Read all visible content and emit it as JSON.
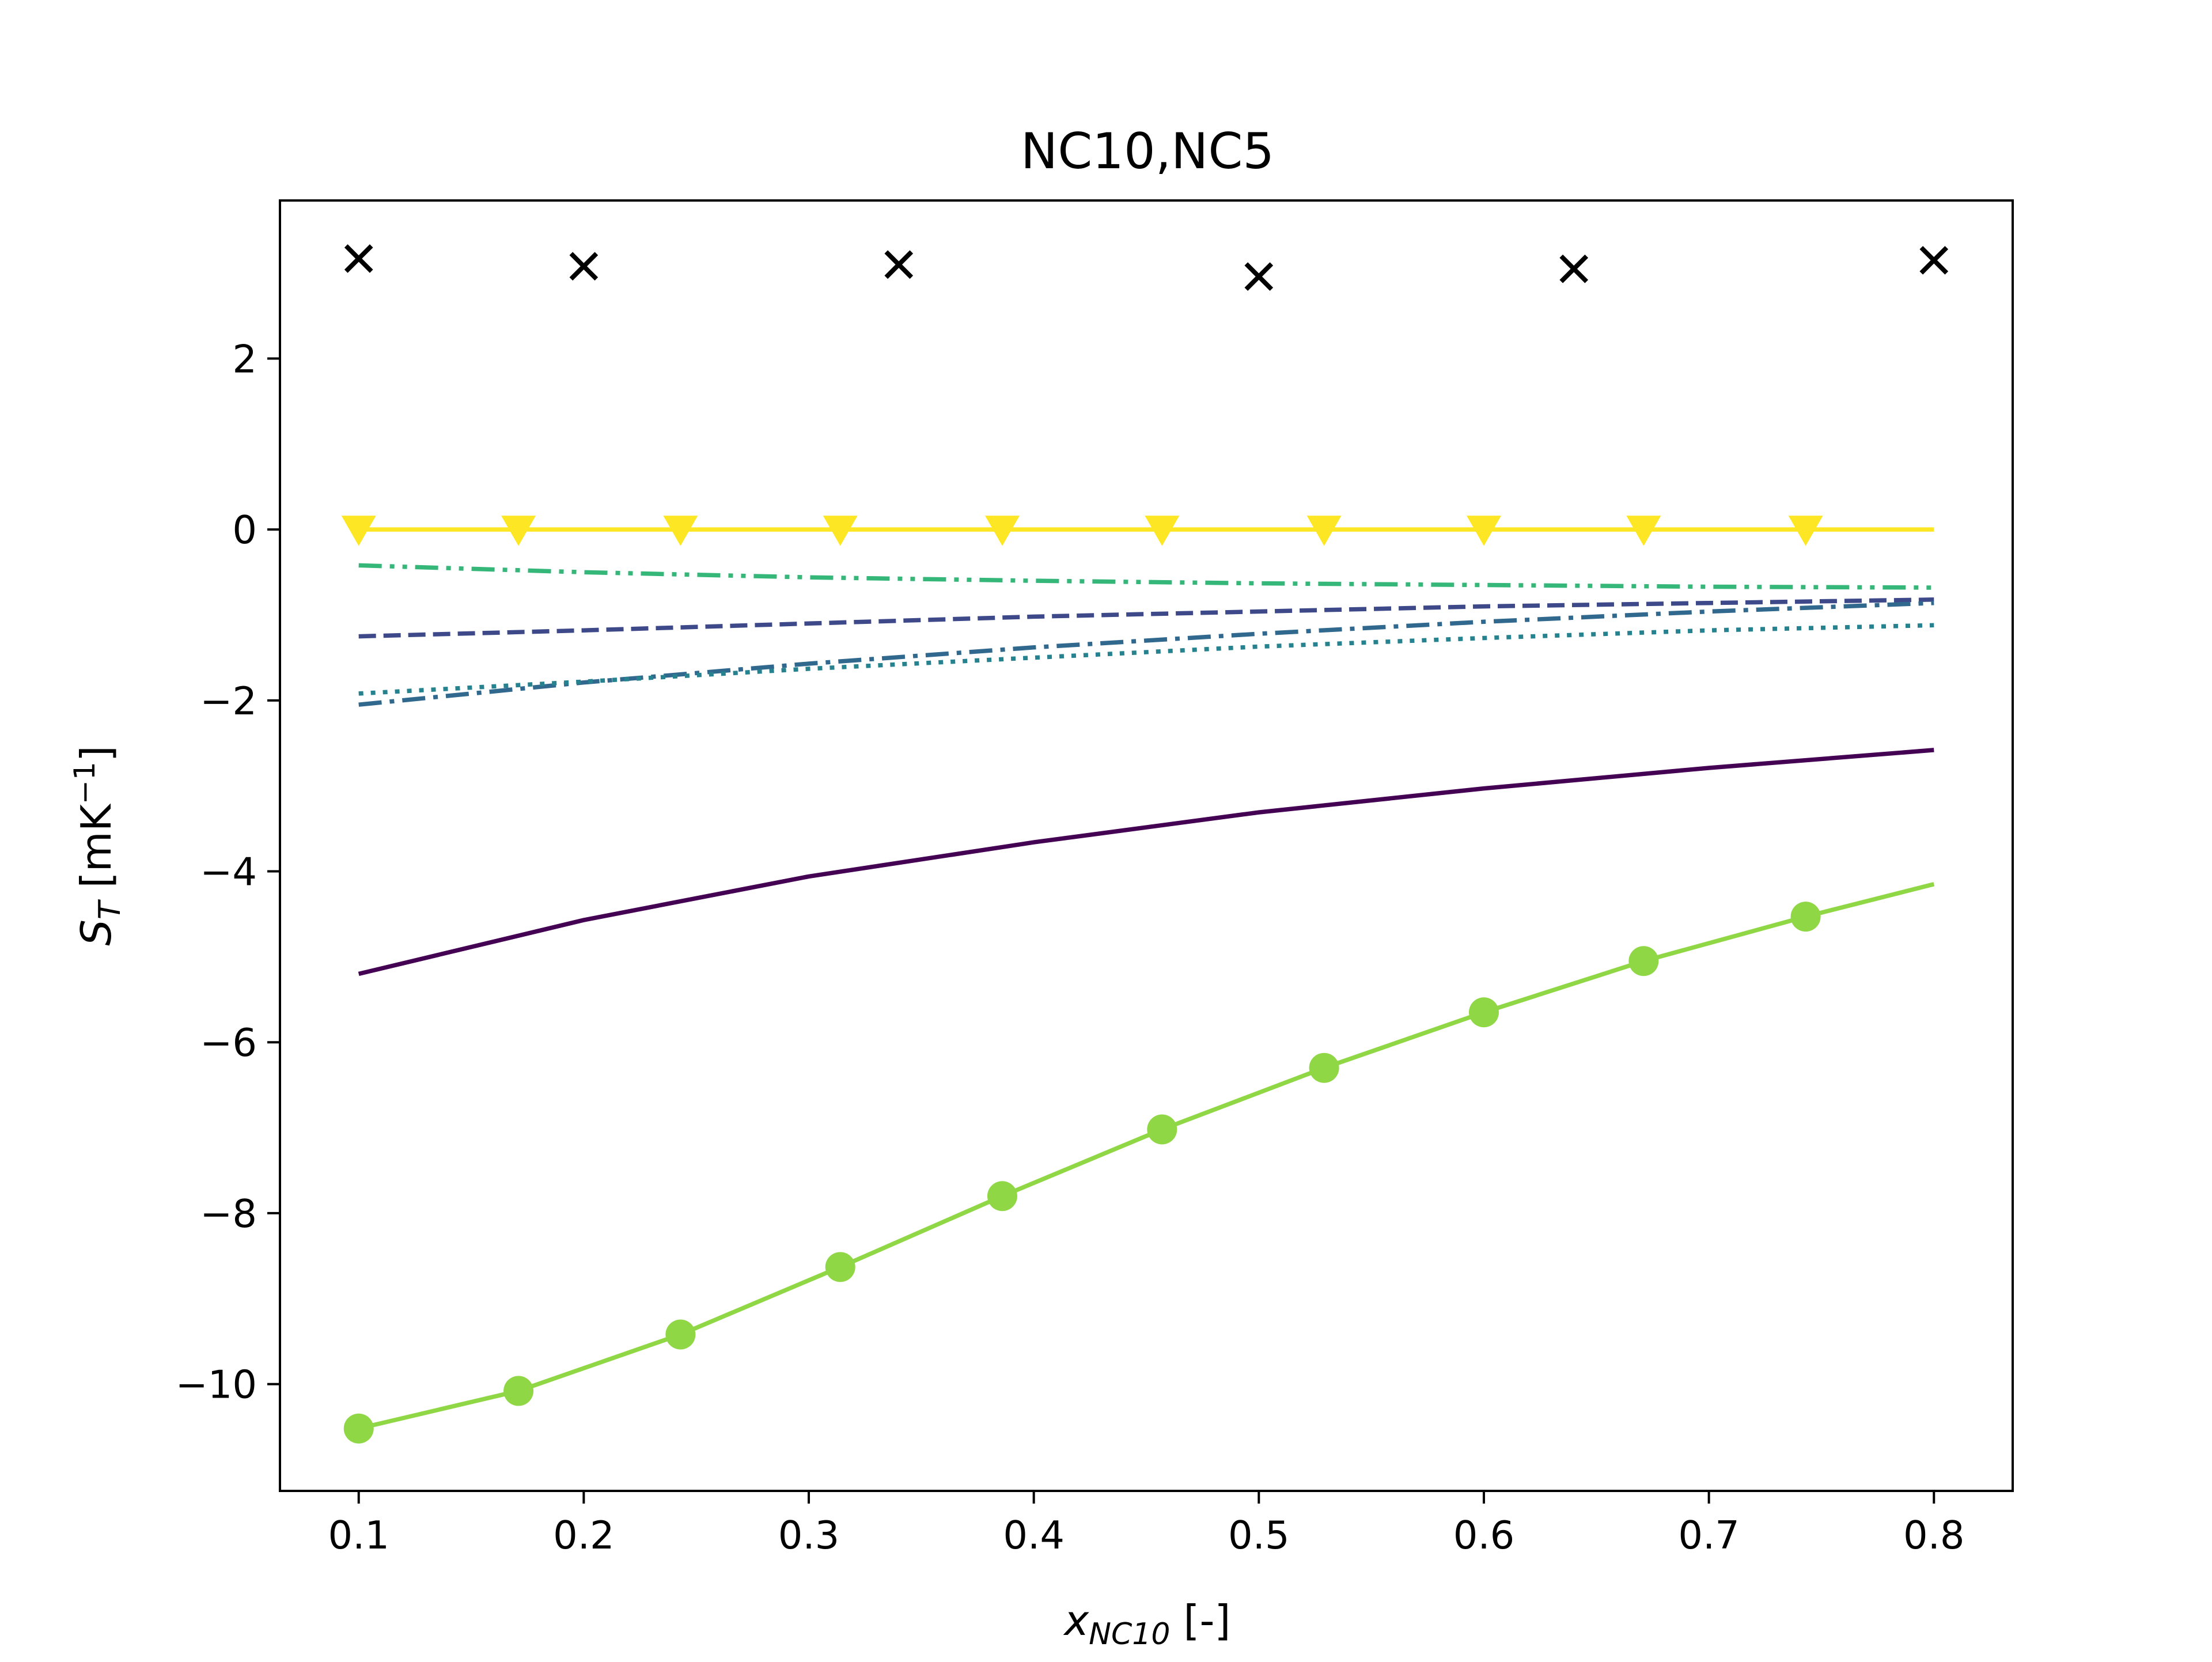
{
  "chart_data": {
    "type": "line",
    "title": "NC10,NC5",
    "xlabel": {
      "main": "x",
      "sub": "NC10",
      "suffix": " [-]"
    },
    "ylabel": {
      "main": "S",
      "sub": "T",
      "suffix": " [mK",
      "sup": "−1",
      "end": "]"
    },
    "xlim": [
      0.065,
      0.835
    ],
    "ylim": [
      -11.25,
      3.85
    ],
    "xticks": [
      "0.1",
      "0.2",
      "0.3",
      "0.4",
      "0.5",
      "0.6",
      "0.7",
      "0.8"
    ],
    "yticks": [
      "−10",
      "−8",
      "−6",
      "−4",
      "−2",
      "0",
      "2"
    ],
    "grid": false,
    "series": [
      {
        "color": "#440154",
        "dash": "solid",
        "x": [
          0.1,
          0.2,
          0.3,
          0.4,
          0.5,
          0.6,
          0.7,
          0.8
        ],
        "y": [
          -5.2,
          -4.57,
          -4.06,
          -3.66,
          -3.31,
          -3.03,
          -2.79,
          -2.58
        ]
      },
      {
        "color": "#3e4989",
        "dash": "dashed",
        "x": [
          0.1,
          0.2,
          0.3,
          0.4,
          0.5,
          0.6,
          0.7,
          0.8
        ],
        "y": [
          -1.25,
          -1.18,
          -1.1,
          -1.02,
          -0.96,
          -0.9,
          -0.86,
          -0.82
        ]
      },
      {
        "color": "#31688e",
        "dash": "dashdot",
        "x": [
          0.1,
          0.2,
          0.3,
          0.4,
          0.5,
          0.6,
          0.7,
          0.8
        ],
        "y": [
          -2.05,
          -1.79,
          -1.57,
          -1.38,
          -1.22,
          -1.08,
          -0.96,
          -0.86
        ]
      },
      {
        "color": "#26828e",
        "dash": "dotted",
        "x": [
          0.1,
          0.2,
          0.3,
          0.4,
          0.5,
          0.6,
          0.7,
          0.8
        ],
        "y": [
          -1.92,
          -1.78,
          -1.63,
          -1.5,
          -1.37,
          -1.27,
          -1.18,
          -1.12
        ]
      },
      {
        "color": "#35b779",
        "dash": "dashdotdot",
        "x": [
          0.1,
          0.2,
          0.3,
          0.4,
          0.5,
          0.6,
          0.7,
          0.8
        ],
        "y": [
          -0.42,
          -0.5,
          -0.56,
          -0.6,
          -0.63,
          -0.65,
          -0.67,
          -0.68
        ]
      },
      {
        "color": "#8fd744",
        "dash": "solid",
        "marker": "circle",
        "x": [
          0.1,
          0.171,
          0.243,
          0.314,
          0.386,
          0.457,
          0.529,
          0.6,
          0.671,
          0.743,
          0.8
        ],
        "y": [
          -10.52,
          -10.08,
          -9.42,
          -8.63,
          -7.8,
          -7.02,
          -6.3,
          -5.65,
          -5.05,
          -4.53,
          -4.15
        ],
        "marker_x": [
          0.1,
          0.171,
          0.243,
          0.314,
          0.386,
          0.457,
          0.529,
          0.6,
          0.671,
          0.743
        ],
        "marker_y": [
          -10.52,
          -10.08,
          -9.42,
          -8.63,
          -7.8,
          -7.02,
          -6.3,
          -5.65,
          -5.05,
          -4.53
        ]
      },
      {
        "color": "#fde725",
        "dash": "solid",
        "marker": "triangle-down",
        "x": [
          0.1,
          0.8
        ],
        "y": [
          0,
          0
        ],
        "marker_x": [
          0.1,
          0.171,
          0.243,
          0.314,
          0.386,
          0.457,
          0.529,
          0.6,
          0.671,
          0.743
        ],
        "marker_y": [
          0,
          0,
          0,
          0,
          0,
          0,
          0,
          0,
          0,
          0
        ]
      },
      {
        "color": "#000000",
        "dash": "none",
        "marker": "x",
        "x": [
          0.1,
          0.2,
          0.34,
          0.5,
          0.64,
          0.8
        ],
        "y": [
          3.17,
          3.08,
          3.1,
          2.96,
          3.05,
          3.15
        ],
        "marker_x": [
          0.1,
          0.2,
          0.34,
          0.5,
          0.64,
          0.8
        ],
        "marker_y": [
          3.17,
          3.08,
          3.1,
          2.96,
          3.05,
          3.15
        ]
      }
    ]
  }
}
